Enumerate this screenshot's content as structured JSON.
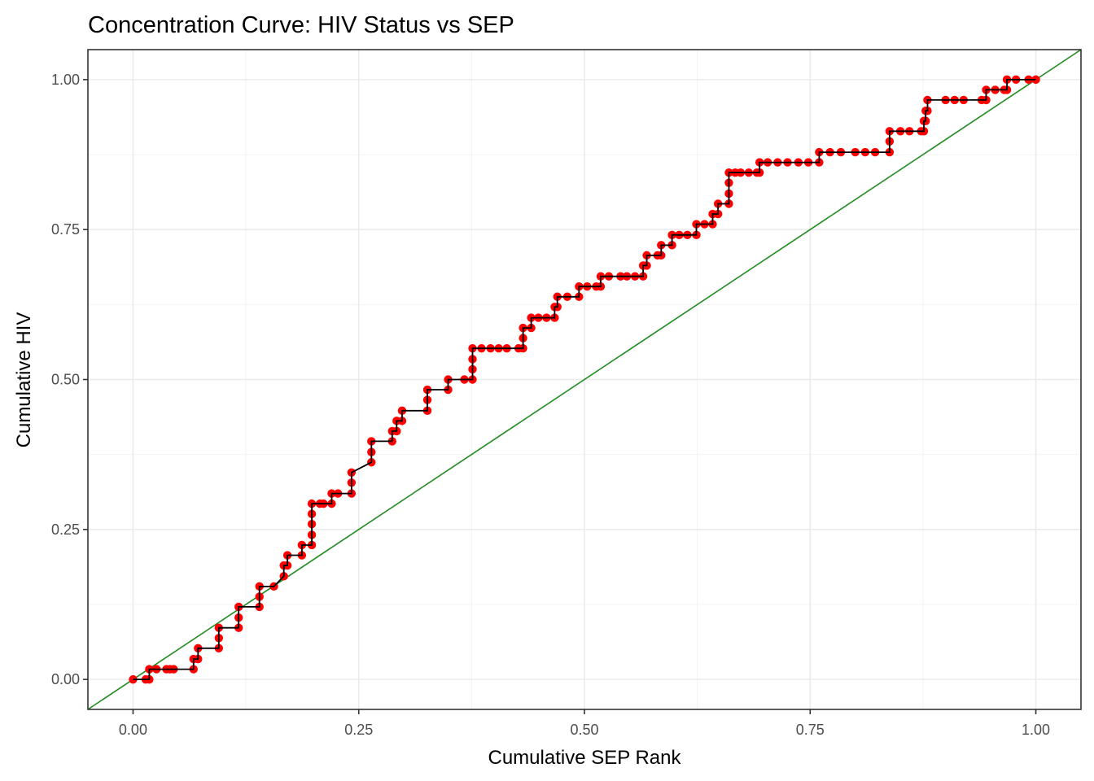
{
  "chart_data": {
    "type": "line",
    "title": "Concentration Curve: HIV Status vs SEP",
    "xlabel": "Cumulative SEP Rank",
    "ylabel": "Cumulative HIV",
    "xlim": [
      -0.05,
      1.05
    ],
    "ylim": [
      -0.05,
      1.05
    ],
    "x_ticks": [
      0,
      0.25,
      0.5,
      0.75,
      1
    ],
    "x_tick_labels": [
      "0.00",
      "0.25",
      "0.50",
      "0.75",
      "1.00"
    ],
    "y_ticks": [
      0,
      0.25,
      0.5,
      0.75,
      1
    ],
    "y_tick_labels": [
      "0.00",
      "0.25",
      "0.50",
      "0.75",
      "1.00"
    ],
    "grid": true,
    "legend": "none",
    "colors": {
      "curve_line": "#000000",
      "curve_points": "#ff0000",
      "equality_line": "#228b22"
    },
    "series": [
      {
        "name": "concentration_curve",
        "style": "step-line-with-points",
        "points": [
          [
            0.0,
            0.0
          ],
          [
            0.014,
            0.0
          ],
          [
            0.018,
            0.0
          ],
          [
            0.018,
            0.017
          ],
          [
            0.026,
            0.017
          ],
          [
            0.037,
            0.017
          ],
          [
            0.041,
            0.017
          ],
          [
            0.045,
            0.017
          ],
          [
            0.067,
            0.017
          ],
          [
            0.067,
            0.034
          ],
          [
            0.072,
            0.034
          ],
          [
            0.072,
            0.052
          ],
          [
            0.095,
            0.052
          ],
          [
            0.095,
            0.069
          ],
          [
            0.095,
            0.086
          ],
          [
            0.117,
            0.086
          ],
          [
            0.117,
            0.103
          ],
          [
            0.117,
            0.121
          ],
          [
            0.14,
            0.121
          ],
          [
            0.14,
            0.138
          ],
          [
            0.14,
            0.155
          ],
          [
            0.156,
            0.155
          ],
          [
            0.167,
            0.172
          ],
          [
            0.167,
            0.19
          ],
          [
            0.171,
            0.19
          ],
          [
            0.171,
            0.207
          ],
          [
            0.187,
            0.207
          ],
          [
            0.187,
            0.224
          ],
          [
            0.198,
            0.224
          ],
          [
            0.198,
            0.241
          ],
          [
            0.198,
            0.259
          ],
          [
            0.198,
            0.276
          ],
          [
            0.198,
            0.293
          ],
          [
            0.207,
            0.293
          ],
          [
            0.211,
            0.293
          ],
          [
            0.22,
            0.293
          ],
          [
            0.22,
            0.31
          ],
          [
            0.227,
            0.31
          ],
          [
            0.242,
            0.31
          ],
          [
            0.242,
            0.328
          ],
          [
            0.242,
            0.345
          ],
          [
            0.264,
            0.362
          ],
          [
            0.264,
            0.379
          ],
          [
            0.264,
            0.397
          ],
          [
            0.287,
            0.397
          ],
          [
            0.287,
            0.414
          ],
          [
            0.292,
            0.414
          ],
          [
            0.292,
            0.431
          ],
          [
            0.298,
            0.431
          ],
          [
            0.298,
            0.448
          ],
          [
            0.326,
            0.448
          ],
          [
            0.326,
            0.466
          ],
          [
            0.326,
            0.483
          ],
          [
            0.349,
            0.483
          ],
          [
            0.349,
            0.5
          ],
          [
            0.367,
            0.5
          ],
          [
            0.376,
            0.5
          ],
          [
            0.376,
            0.517
          ],
          [
            0.376,
            0.534
          ],
          [
            0.376,
            0.552
          ],
          [
            0.386,
            0.552
          ],
          [
            0.396,
            0.552
          ],
          [
            0.405,
            0.552
          ],
          [
            0.414,
            0.552
          ],
          [
            0.427,
            0.552
          ],
          [
            0.432,
            0.552
          ],
          [
            0.432,
            0.569
          ],
          [
            0.432,
            0.586
          ],
          [
            0.441,
            0.586
          ],
          [
            0.441,
            0.603
          ],
          [
            0.449,
            0.603
          ],
          [
            0.458,
            0.603
          ],
          [
            0.467,
            0.603
          ],
          [
            0.467,
            0.621
          ],
          [
            0.47,
            0.621
          ],
          [
            0.47,
            0.638
          ],
          [
            0.481,
            0.638
          ],
          [
            0.494,
            0.638
          ],
          [
            0.494,
            0.655
          ],
          [
            0.503,
            0.655
          ],
          [
            0.513,
            0.655
          ],
          [
            0.518,
            0.655
          ],
          [
            0.518,
            0.672
          ],
          [
            0.527,
            0.672
          ],
          [
            0.54,
            0.672
          ],
          [
            0.547,
            0.672
          ],
          [
            0.556,
            0.672
          ],
          [
            0.565,
            0.672
          ],
          [
            0.565,
            0.69
          ],
          [
            0.569,
            0.69
          ],
          [
            0.569,
            0.707
          ],
          [
            0.581,
            0.707
          ],
          [
            0.585,
            0.707
          ],
          [
            0.585,
            0.724
          ],
          [
            0.597,
            0.724
          ],
          [
            0.597,
            0.741
          ],
          [
            0.605,
            0.741
          ],
          [
            0.614,
            0.741
          ],
          [
            0.624,
            0.741
          ],
          [
            0.624,
            0.759
          ],
          [
            0.633,
            0.759
          ],
          [
            0.642,
            0.759
          ],
          [
            0.642,
            0.776
          ],
          [
            0.648,
            0.776
          ],
          [
            0.648,
            0.793
          ],
          [
            0.66,
            0.793
          ],
          [
            0.66,
            0.81
          ],
          [
            0.66,
            0.828
          ],
          [
            0.66,
            0.845
          ],
          [
            0.667,
            0.845
          ],
          [
            0.673,
            0.845
          ],
          [
            0.682,
            0.845
          ],
          [
            0.691,
            0.845
          ],
          [
            0.694,
            0.845
          ],
          [
            0.694,
            0.862
          ],
          [
            0.703,
            0.862
          ],
          [
            0.714,
            0.862
          ],
          [
            0.725,
            0.862
          ],
          [
            0.737,
            0.862
          ],
          [
            0.748,
            0.862
          ],
          [
            0.76,
            0.862
          ],
          [
            0.76,
            0.879
          ],
          [
            0.772,
            0.879
          ],
          [
            0.784,
            0.879
          ],
          [
            0.8,
            0.879
          ],
          [
            0.811,
            0.879
          ],
          [
            0.822,
            0.879
          ],
          [
            0.838,
            0.879
          ],
          [
            0.838,
            0.897
          ],
          [
            0.838,
            0.914
          ],
          [
            0.85,
            0.914
          ],
          [
            0.86,
            0.914
          ],
          [
            0.873,
            0.914
          ],
          [
            0.876,
            0.914
          ],
          [
            0.876,
            0.931
          ],
          [
            0.878,
            0.931
          ],
          [
            0.878,
            0.948
          ],
          [
            0.88,
            0.948
          ],
          [
            0.88,
            0.966
          ],
          [
            0.9,
            0.966
          ],
          [
            0.91,
            0.966
          ],
          [
            0.92,
            0.966
          ],
          [
            0.94,
            0.966
          ],
          [
            0.945,
            0.966
          ],
          [
            0.945,
            0.983
          ],
          [
            0.955,
            0.983
          ],
          [
            0.965,
            0.983
          ],
          [
            0.968,
            0.983
          ],
          [
            0.968,
            1.0
          ],
          [
            0.978,
            1.0
          ],
          [
            0.992,
            1.0
          ],
          [
            1.0,
            1.0
          ]
        ]
      },
      {
        "name": "line_of_equality",
        "style": "line",
        "points": [
          [
            -0.05,
            -0.05
          ],
          [
            1.05,
            1.05
          ]
        ]
      }
    ]
  }
}
